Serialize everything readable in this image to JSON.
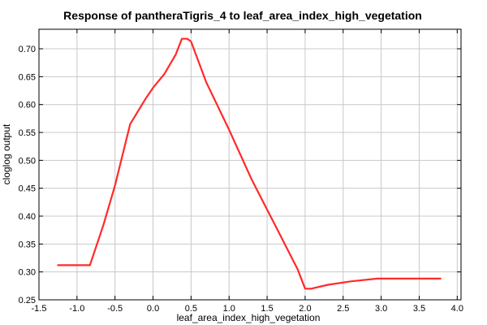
{
  "chart_data": {
    "type": "line",
    "title": "Response of pantheraTigris_4 to leaf_area_index_high_vegetation",
    "xlabel": "leaf_area_index_high_vegetation",
    "ylabel": "cloglog output",
    "xlim": [
      -1.5,
      4.05
    ],
    "ylim": [
      0.25,
      0.735
    ],
    "grid": true,
    "x_ticks": [
      -1.5,
      -1.0,
      -0.5,
      0.0,
      0.5,
      1.0,
      1.5,
      2.0,
      2.5,
      3.0,
      3.5,
      4.0
    ],
    "x_tick_labels": [
      "-1.5",
      "-1.0",
      "-0.5",
      "0.0",
      "0.5",
      "1.0",
      "1.5",
      "2.0",
      "2.5",
      "3.0",
      "3.5",
      "4.0"
    ],
    "y_ticks": [
      0.25,
      0.3,
      0.35,
      0.4,
      0.45,
      0.5,
      0.55,
      0.6,
      0.65,
      0.7
    ],
    "y_tick_labels": [
      "0.25",
      "0.30",
      "0.35",
      "0.40",
      "0.45",
      "0.50",
      "0.55",
      "0.60",
      "0.65",
      "0.70"
    ],
    "series": [
      {
        "color": "#ff2a2a",
        "x": [
          -1.25,
          -0.83,
          -0.65,
          -0.5,
          -0.3,
          -0.1,
          0.0,
          0.15,
          0.3,
          0.38,
          0.45,
          0.5,
          0.7,
          1.0,
          1.3,
          1.6,
          1.9,
          2.0,
          2.08,
          2.3,
          2.6,
          2.95,
          3.78
        ],
        "y": [
          0.312,
          0.312,
          0.385,
          0.455,
          0.565,
          0.61,
          0.63,
          0.655,
          0.69,
          0.718,
          0.718,
          0.713,
          0.64,
          0.555,
          0.465,
          0.385,
          0.305,
          0.27,
          0.27,
          0.277,
          0.283,
          0.288,
          0.288
        ]
      }
    ]
  }
}
